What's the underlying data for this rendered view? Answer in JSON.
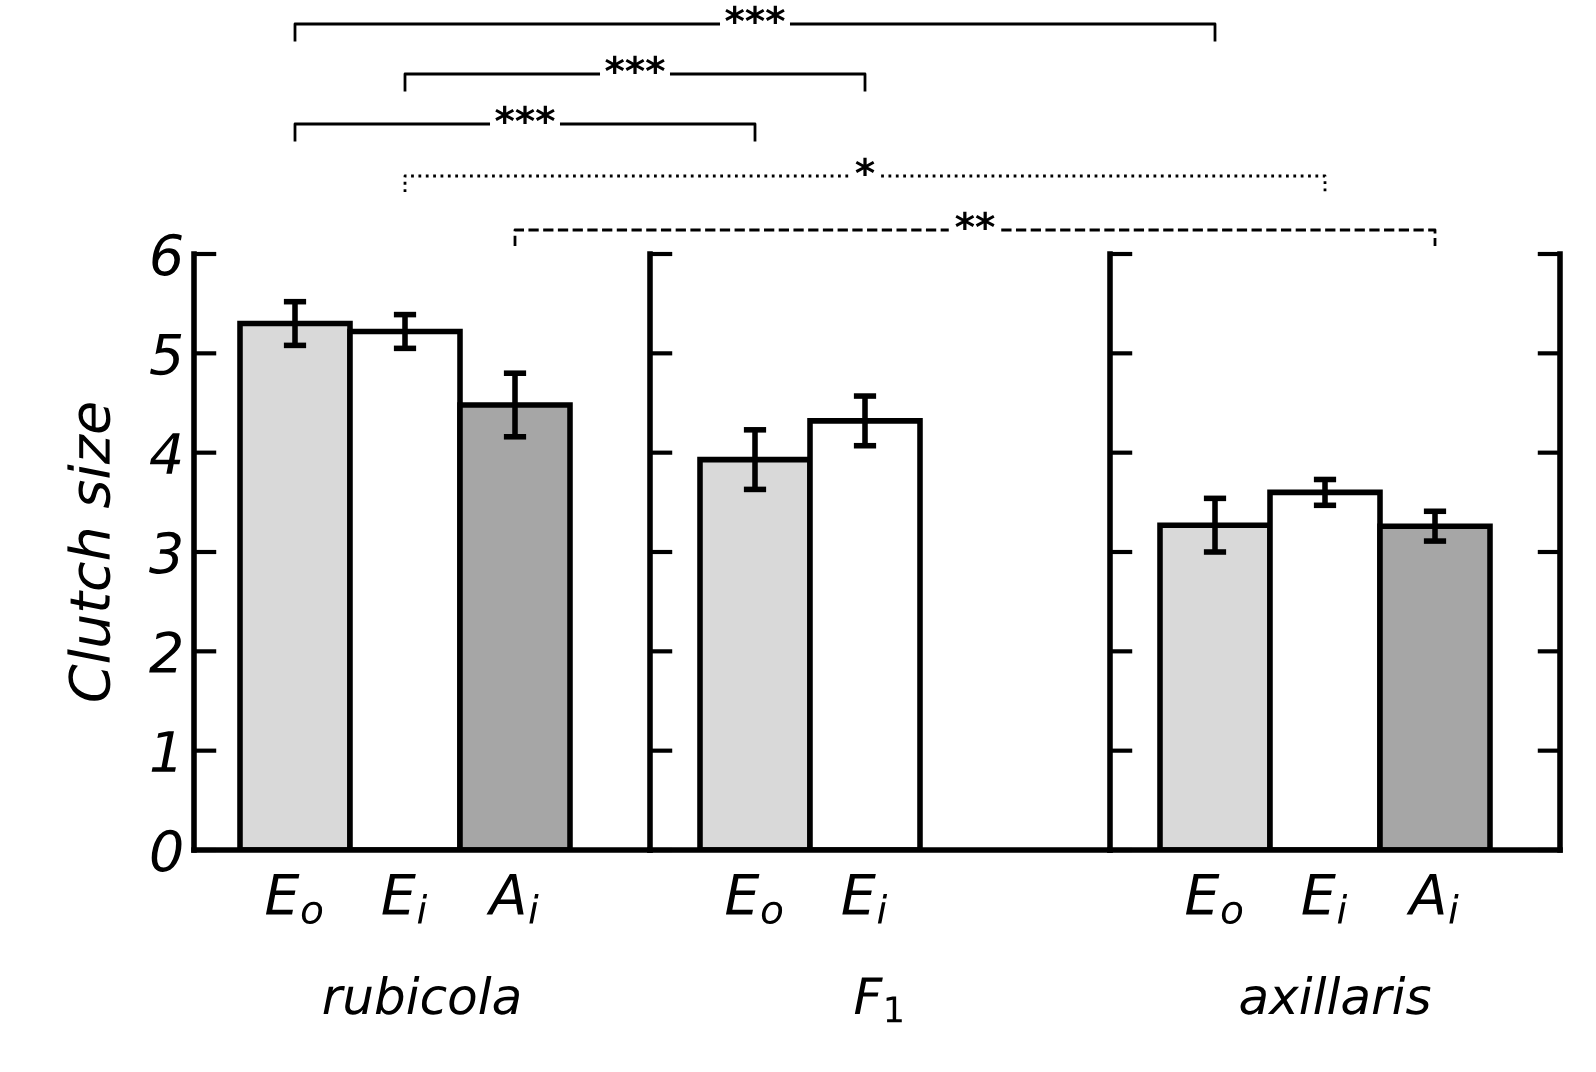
{
  "chart_data": [
    {
      "type": "bar",
      "xlabel": "rubicola",
      "ylabel": "Clutch size",
      "categories": [
        "E$_{o}$",
        "E$_{i}$",
        "A$_{i}$"
      ],
      "values": [
        5.3,
        5.22,
        4.48
      ],
      "errors": [
        0.22,
        0.17,
        0.32
      ],
      "colors": [
        "#d9d9d9",
        "#ffffff",
        "#a6a6a6"
      ],
      "ylim": [
        0,
        6
      ],
      "yticks": [
        0,
        1,
        2,
        3,
        4,
        5,
        6
      ],
      "grid": false,
      "legend": false,
      "annotations": [
        "***",
        "***",
        "***",
        "*",
        "**"
      ]
    },
    {
      "type": "bar",
      "xlabel": "F$_{1}$",
      "categories": [
        "E$_{o}$",
        "E$_{i}$"
      ],
      "values": [
        3.93,
        4.32
      ],
      "errors": [
        0.3,
        0.25
      ],
      "colors": [
        "#d9d9d9",
        "#ffffff"
      ],
      "ylim": [
        0,
        6
      ],
      "yticks": [
        0,
        1,
        2,
        3,
        4,
        5,
        6
      ],
      "tick_labels": "x",
      "grid": false,
      "legend": false
    },
    {
      "type": "bar",
      "xlabel": "axillaris",
      "categories": [
        "E$_{o}$",
        "E$_{i}$",
        "A$_{i}$"
      ],
      "values": [
        3.27,
        3.6,
        3.26
      ],
      "errors": [
        0.27,
        0.13,
        0.15
      ],
      "colors": [
        "#d9d9d9",
        "#ffffff",
        "#a6a6a6"
      ],
      "ylim": [
        0,
        6
      ],
      "yticks": [
        0,
        1,
        2,
        3,
        4,
        5,
        6
      ],
      "tick_labels": "x",
      "grid": false,
      "legend": false
    }
  ]
}
